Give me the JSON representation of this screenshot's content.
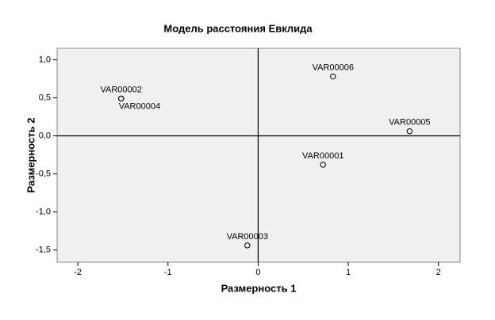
{
  "chart_data": {
    "type": "scatter",
    "title": "Модель расстояния Евклида",
    "x_label": "Размерность 1",
    "y_label": "Размерность 2",
    "labels": [
      "VAR00002",
      "VAR00004",
      "VAR00006",
      "VAR00005",
      "VAR00001",
      "VAR00003"
    ],
    "x": [
      -1.52,
      -1.52,
      0.83,
      1.68,
      0.72,
      -0.12
    ],
    "y": [
      0.49,
      0.49,
      0.78,
      0.06,
      -0.38,
      -1.44
    ],
    "xlim": [
      -2.23,
      2.24
    ],
    "ylim": [
      -1.66,
      1.15
    ],
    "xticks": [
      -2,
      -1,
      0,
      1,
      2
    ],
    "yticks": [
      {
        "value": 1,
        "label": "1,0"
      },
      {
        "value": 0.5,
        "label": "0,5"
      },
      {
        "value": 0,
        "label": "0,0"
      },
      {
        "value": -0.5,
        "label": "-0,5"
      },
      {
        "value": -1,
        "label": "-1,0"
      },
      {
        "value": -1.5,
        "label": "-1,5"
      }
    ],
    "plot_background": "#f0f0f0",
    "marker_color": "#000000"
  }
}
